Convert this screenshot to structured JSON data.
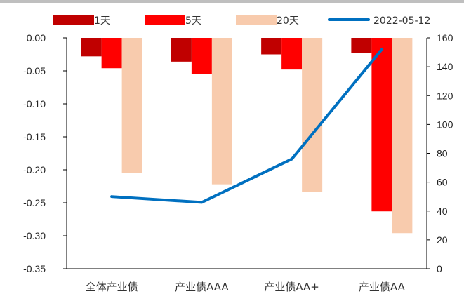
{
  "chart_data": {
    "type": "bar",
    "categories": [
      "全体产业债",
      "产业债AAA",
      "产业债AA+",
      "产业债AA"
    ],
    "series": [
      {
        "name": "1天",
        "type": "bar",
        "axis": "left",
        "color": "#C00000",
        "values": [
          -0.028,
          -0.036,
          -0.025,
          -0.023
        ]
      },
      {
        "name": "5天",
        "type": "bar",
        "axis": "left",
        "color": "#FF0000",
        "values": [
          -0.046,
          -0.055,
          -0.048,
          -0.263
        ]
      },
      {
        "name": "20天",
        "type": "bar",
        "axis": "left",
        "color": "#F8CBAD",
        "values": [
          -0.205,
          -0.222,
          -0.234,
          -0.296
        ]
      },
      {
        "name": "2022-05-12",
        "type": "line",
        "axis": "right",
        "color": "#0070C0",
        "values": [
          50,
          46,
          76,
          152
        ]
      }
    ],
    "y_left": {
      "lim": [
        -0.35,
        0
      ],
      "ticks": [
        "-0.35",
        "-0.30",
        "-0.25",
        "-0.20",
        "-0.15",
        "-0.10",
        "-0.05",
        "0.00"
      ]
    },
    "y_right": {
      "lim": [
        0,
        160
      ],
      "ticks": [
        "0",
        "20",
        "40",
        "60",
        "80",
        "100",
        "120",
        "140",
        "160"
      ]
    },
    "legend_position": "top",
    "grid": false
  }
}
